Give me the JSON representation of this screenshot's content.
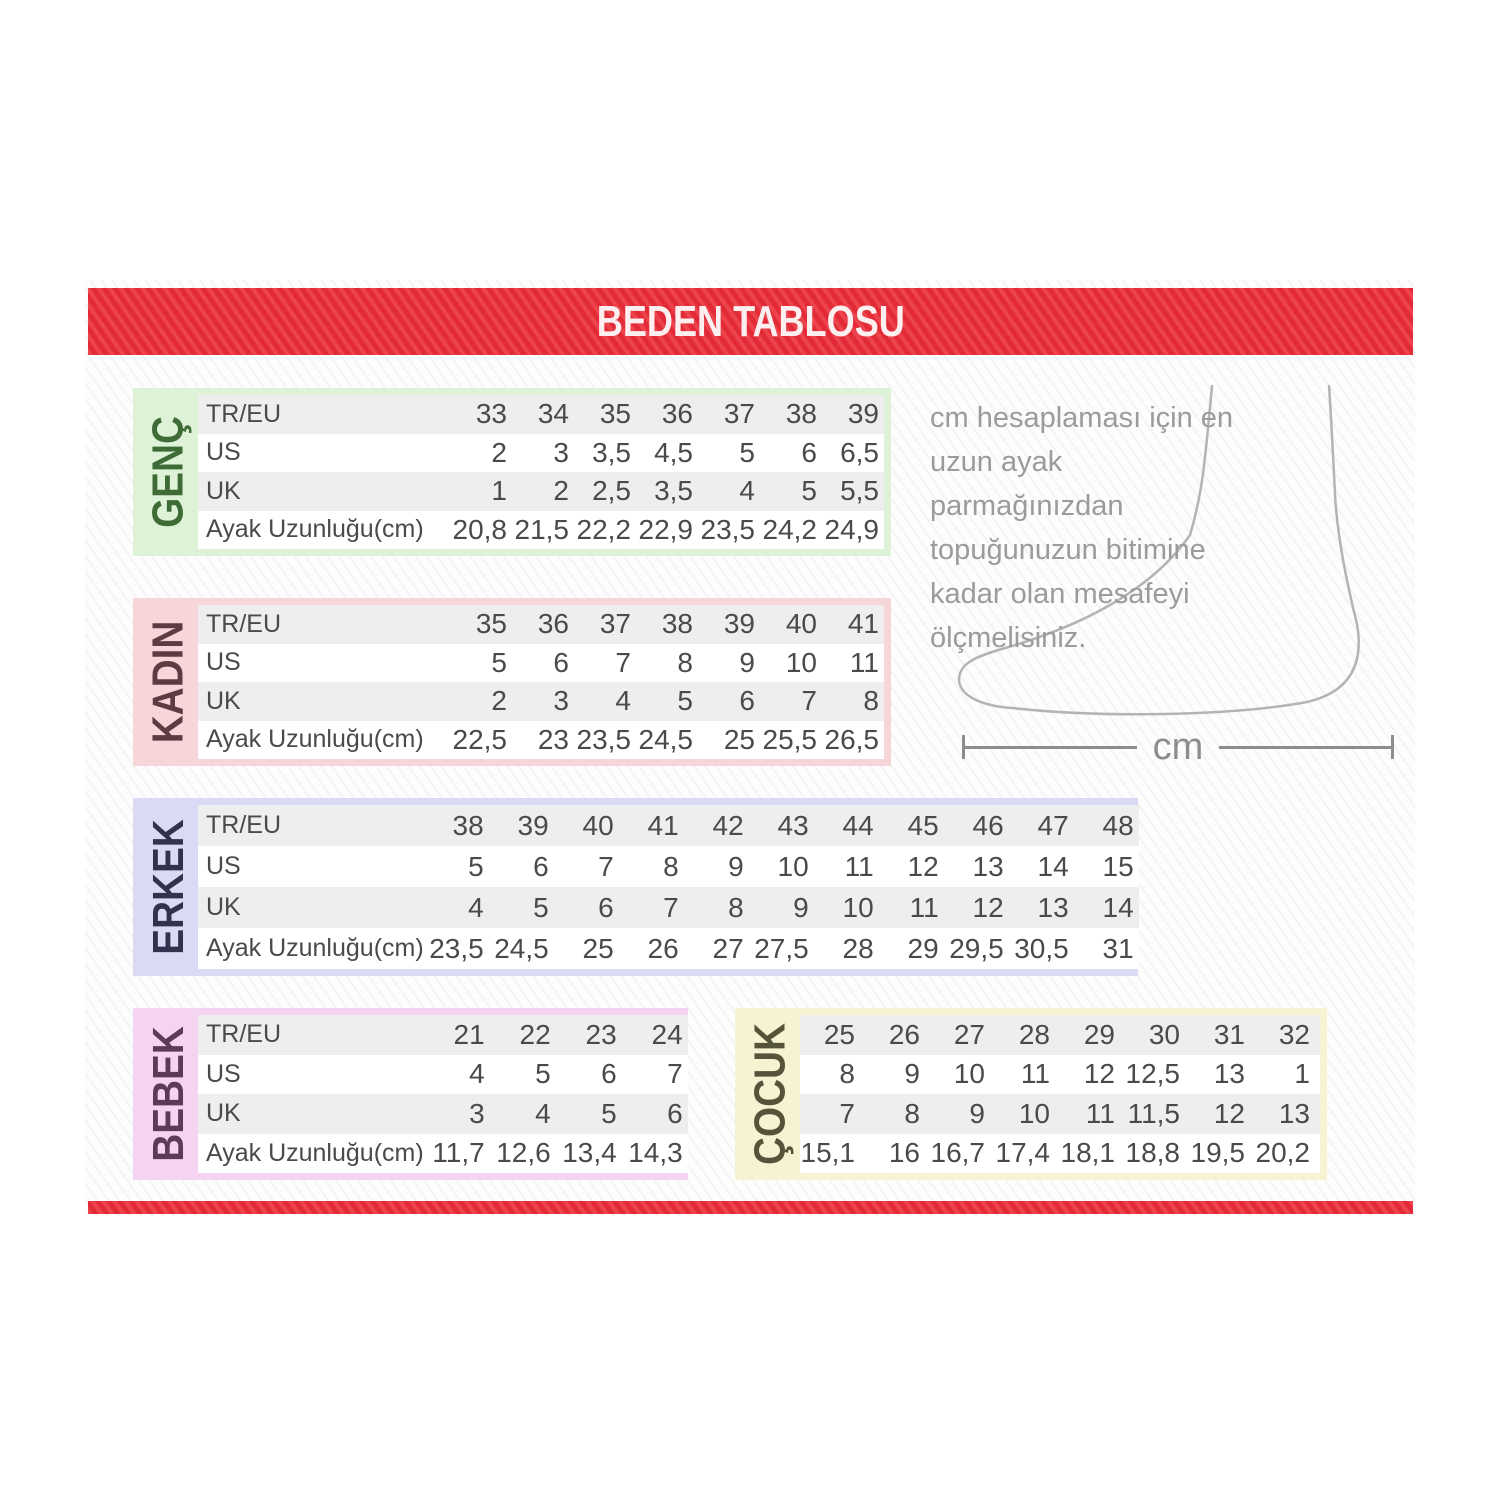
{
  "header": {
    "title": "BEDEN TABLOSU",
    "accent_color": "#e22b36"
  },
  "measure": {
    "note": "cm hesaplaması için en uzun ayak parmağınızdan topuğunuzun bitimine kadar olan mesafeyi ölçmelisiniz.",
    "unit_label": "cm"
  },
  "tables": [
    {
      "id": "genc",
      "label": "GENÇ",
      "accent_bg": "#ddf2d7",
      "label_color": "#3f6b37",
      "show_row_labels": true,
      "rows": [
        {
          "label": "TR/EU",
          "values": [
            "33",
            "34",
            "35",
            "36",
            "37",
            "38",
            "39"
          ]
        },
        {
          "label": "US",
          "values": [
            "2",
            "3",
            "3,5",
            "4,5",
            "5",
            "6",
            "6,5"
          ]
        },
        {
          "label": "UK",
          "values": [
            "1",
            "2",
            "2,5",
            "3,5",
            "4",
            "5",
            "5,5"
          ]
        },
        {
          "label": "Ayak Uzunluğu(cm)",
          "values": [
            "20,8",
            "21,5",
            "22,2",
            "22,9",
            "23,5",
            "24,2",
            "24,9"
          ]
        }
      ]
    },
    {
      "id": "kadin",
      "label": "KADIN",
      "accent_bg": "#f6d6d9",
      "label_color": "#5e3a42",
      "show_row_labels": true,
      "rows": [
        {
          "label": "TR/EU",
          "values": [
            "35",
            "36",
            "37",
            "38",
            "39",
            "40",
            "41"
          ]
        },
        {
          "label": "US",
          "values": [
            "5",
            "6",
            "7",
            "8",
            "9",
            "10",
            "11"
          ]
        },
        {
          "label": "UK",
          "values": [
            "2",
            "3",
            "4",
            "5",
            "6",
            "7",
            "8"
          ]
        },
        {
          "label": "Ayak Uzunluğu(cm)",
          "values": [
            "22,5",
            "23",
            "23,5",
            "24,5",
            "25",
            "25,5",
            "26,5"
          ]
        }
      ]
    },
    {
      "id": "erkek",
      "label": "ERKEK",
      "accent_bg": "#dadaf4",
      "label_color": "#32324e",
      "show_row_labels": true,
      "rows": [
        {
          "label": "TR/EU",
          "values": [
            "38",
            "39",
            "40",
            "41",
            "42",
            "43",
            "44",
            "45",
            "46",
            "47",
            "48"
          ]
        },
        {
          "label": "US",
          "values": [
            "5",
            "6",
            "7",
            "8",
            "9",
            "10",
            "11",
            "12",
            "13",
            "14",
            "15"
          ]
        },
        {
          "label": "UK",
          "values": [
            "4",
            "5",
            "6",
            "7",
            "8",
            "9",
            "10",
            "11",
            "12",
            "13",
            "14"
          ]
        },
        {
          "label": "Ayak Uzunluğu(cm)",
          "values": [
            "23,5",
            "24,5",
            "25",
            "26",
            "27",
            "27,5",
            "28",
            "29",
            "29,5",
            "30,5",
            "31"
          ]
        }
      ]
    },
    {
      "id": "bebek",
      "label": "BEBEK",
      "accent_bg": "#f4d4f0",
      "label_color": "#5c3a58",
      "show_row_labels": true,
      "rows": [
        {
          "label": "TR/EU",
          "values": [
            "21",
            "22",
            "23",
            "24"
          ]
        },
        {
          "label": "US",
          "values": [
            "4",
            "5",
            "6",
            "7"
          ]
        },
        {
          "label": "UK",
          "values": [
            "3",
            "4",
            "5",
            "6"
          ]
        },
        {
          "label": "Ayak Uzunluğu(cm)",
          "values": [
            "11,7",
            "12,6",
            "13,4",
            "14,3"
          ]
        }
      ]
    },
    {
      "id": "cocuk",
      "label": "ÇOCUK",
      "accent_bg": "#f6f3d2",
      "label_color": "#55543a",
      "show_row_labels": false,
      "rows": [
        {
          "label": "",
          "values": [
            "25",
            "26",
            "27",
            "28",
            "29",
            "30",
            "31",
            "32"
          ]
        },
        {
          "label": "",
          "values": [
            "8",
            "9",
            "10",
            "11",
            "12",
            "12,5",
            "13",
            "1"
          ]
        },
        {
          "label": "",
          "values": [
            "7",
            "8",
            "9",
            "10",
            "11",
            "11,5",
            "12",
            "13"
          ]
        },
        {
          "label": "",
          "values": [
            "15,1",
            "16",
            "16,7",
            "17,4",
            "18,1",
            "18,8",
            "19,5",
            "20,2"
          ]
        }
      ]
    }
  ]
}
